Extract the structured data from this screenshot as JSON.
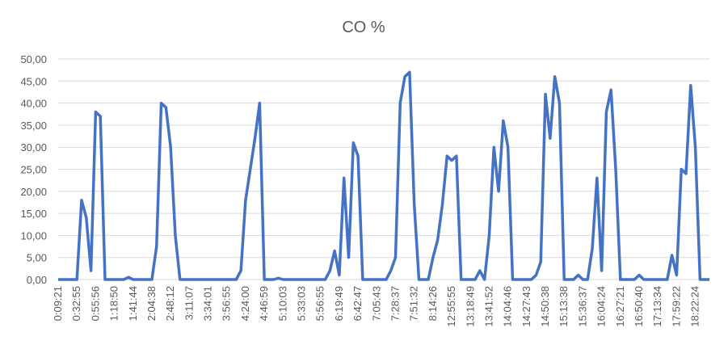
{
  "chart_data": {
    "type": "line",
    "title": "CO %",
    "categories": [
      "0:09:21",
      null,
      null,
      null,
      "0:32:55",
      null,
      null,
      null,
      "0:55:56",
      null,
      null,
      null,
      "1:18:50",
      null,
      null,
      null,
      "1:41:44",
      null,
      null,
      null,
      "2:04:38",
      null,
      null,
      null,
      "2:48:12",
      null,
      null,
      null,
      "3:11:07",
      null,
      null,
      null,
      "3:34:01",
      null,
      null,
      null,
      "3:56:55",
      null,
      null,
      null,
      "4:24:00",
      null,
      null,
      null,
      "4:46:59",
      null,
      null,
      null,
      "5:10:03",
      null,
      null,
      null,
      "5:33:03",
      null,
      null,
      null,
      "5:56:55",
      null,
      null,
      null,
      "6:19:49",
      null,
      null,
      null,
      "6:42:47",
      null,
      null,
      null,
      "7:05:43",
      null,
      null,
      null,
      "7:28:37",
      null,
      null,
      null,
      "7:51:32",
      null,
      null,
      null,
      "8:14:26",
      null,
      null,
      null,
      "12:55:55",
      null,
      null,
      null,
      "13:18:49",
      null,
      null,
      null,
      "13:41:52",
      null,
      null,
      null,
      "14:04:46",
      null,
      null,
      null,
      "14:27:43",
      null,
      null,
      null,
      "14:50:38",
      null,
      null,
      null,
      "15:13:38",
      null,
      null,
      null,
      "15:36:37",
      null,
      null,
      null,
      "16:04:24",
      null,
      null,
      null,
      "16:27:21",
      null,
      null,
      null,
      "16:50:40",
      null,
      null,
      null,
      "17:13:34",
      null,
      null,
      null,
      "17:59:22",
      null,
      null,
      null,
      "18:22:24",
      null,
      null,
      null
    ],
    "series": [
      {
        "name": "CO %",
        "color": "#4472c4",
        "values": [
          0,
          0,
          0,
          0,
          0,
          18,
          14,
          2,
          38,
          37,
          0,
          0,
          0,
          0,
          0,
          0.5,
          0,
          0,
          0,
          0,
          0,
          7.5,
          40,
          39,
          30,
          10,
          0,
          0,
          0,
          0,
          0,
          0,
          0,
          0,
          0,
          0,
          0,
          0,
          0,
          2,
          18,
          25,
          32,
          40,
          0,
          0,
          0,
          0.3,
          0,
          0,
          0,
          0,
          0,
          0,
          0,
          0,
          0,
          0,
          2,
          6.5,
          1,
          23,
          5,
          31,
          28,
          0,
          0,
          0,
          0,
          0,
          0,
          2,
          5,
          40,
          46,
          47,
          17,
          0,
          0,
          0,
          5,
          9,
          17,
          28,
          27,
          28,
          0,
          0,
          0,
          0,
          2,
          0,
          10,
          30,
          20,
          36,
          30,
          0,
          0,
          0,
          0,
          0,
          1,
          4,
          42,
          32,
          46,
          40,
          0,
          0,
          0,
          1,
          0,
          0,
          7,
          23,
          2,
          38,
          43,
          25,
          0,
          0,
          0,
          0,
          1,
          0,
          0,
          0,
          0,
          0,
          0,
          5.5,
          1,
          25,
          24,
          44,
          30,
          0,
          0,
          0
        ]
      }
    ],
    "ylim": [
      0,
      50
    ],
    "yticks": [
      {
        "value": 0,
        "label": "0,00"
      },
      {
        "value": 5,
        "label": "5,00"
      },
      {
        "value": 10,
        "label": "10,00"
      },
      {
        "value": 15,
        "label": "15,00"
      },
      {
        "value": 20,
        "label": "20,00"
      },
      {
        "value": 25,
        "label": "25,00"
      },
      {
        "value": 30,
        "label": "30,00"
      },
      {
        "value": 35,
        "label": "35,00"
      },
      {
        "value": 40,
        "label": "40,00"
      },
      {
        "value": 45,
        "label": "45,00"
      },
      {
        "value": 50,
        "label": "50,00"
      }
    ],
    "grid": true
  }
}
